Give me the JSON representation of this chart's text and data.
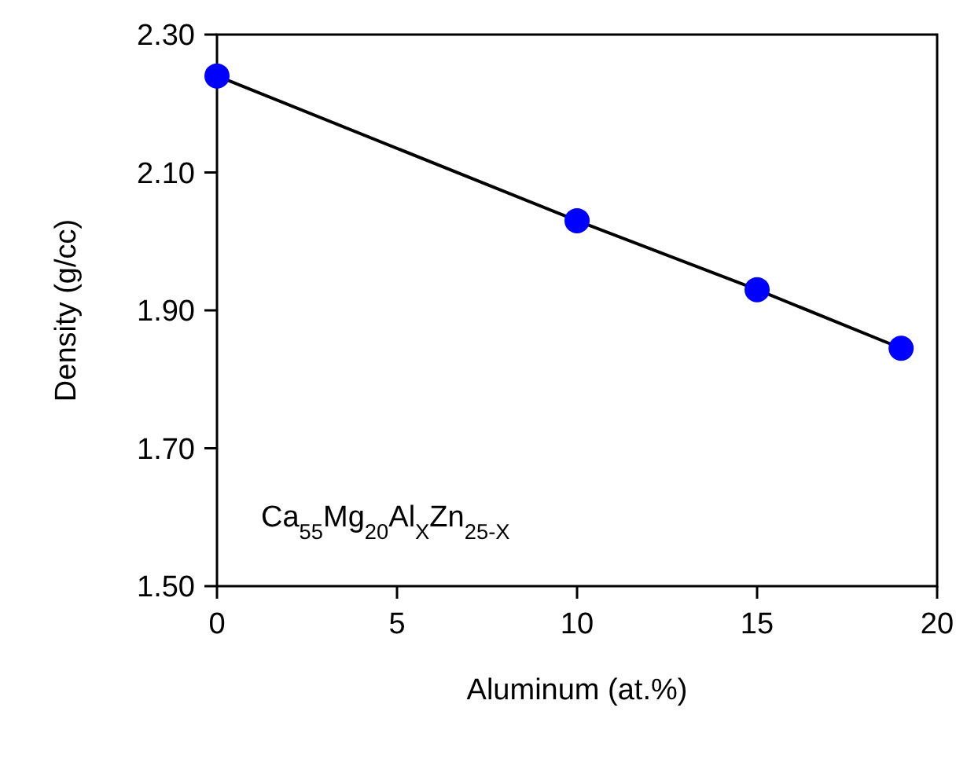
{
  "chart_data": {
    "type": "line",
    "xlabel": "Aluminum (at.%)",
    "ylabel": "Density  (g/cc)",
    "x": [
      0,
      10,
      15,
      19
    ],
    "series": [
      {
        "color": "#0000ff",
        "values": [
          2.24,
          2.03,
          1.93,
          1.845
        ]
      }
    ],
    "marker": "circle",
    "line_style": "solid",
    "grid": false,
    "xlim": [
      0,
      20
    ],
    "xticks": [
      0,
      5,
      10,
      15,
      20
    ],
    "ylim": [
      1.5,
      2.3
    ],
    "yticks": [
      {
        "value": 1.5,
        "label": "1.50"
      },
      {
        "value": 1.7,
        "label": "1.70"
      },
      {
        "value": 1.9,
        "label": "1.90"
      },
      {
        "value": 2.1,
        "label": "2.10"
      },
      {
        "value": 2.3,
        "label": "2.30"
      }
    ],
    "annotations": [
      "Ca$_{55}$Mg$_{20}$Al$_{X}$Zn$_{25-X}$"
    ]
  }
}
